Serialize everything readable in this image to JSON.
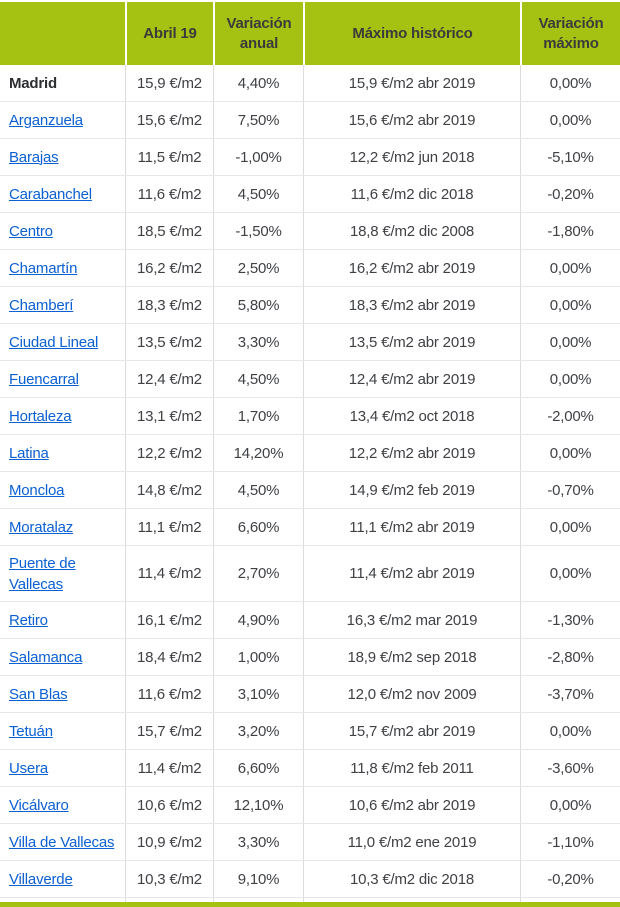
{
  "colors": {
    "header_green": "#a5c212",
    "link_blue": "#0b60d2",
    "body_text": "#3f4145"
  },
  "table": {
    "columns": [
      {
        "label": ""
      },
      {
        "label": "Abril 19"
      },
      {
        "label": "Variación anual"
      },
      {
        "label": "Máximo histórico"
      },
      {
        "label": "Variación máximo"
      }
    ],
    "rows": [
      {
        "name": "Madrid",
        "link": false,
        "abril19": "15,9 €/m2",
        "var_anual": "4,40%",
        "maximo": "15,9 €/m2 abr 2019",
        "var_maximo": "0,00%"
      },
      {
        "name": "Arganzuela",
        "link": true,
        "abril19": "15,6 €/m2",
        "var_anual": "7,50%",
        "maximo": "15,6 €/m2 abr 2019",
        "var_maximo": "0,00%"
      },
      {
        "name": "Barajas",
        "link": true,
        "abril19": "11,5 €/m2",
        "var_anual": "-1,00%",
        "maximo": "12,2 €/m2 jun 2018",
        "var_maximo": "-5,10%"
      },
      {
        "name": "Carabanchel",
        "link": true,
        "abril19": "11,6 €/m2",
        "var_anual": "4,50%",
        "maximo": "11,6 €/m2 dic 2018",
        "var_maximo": "-0,20%"
      },
      {
        "name": "Centro",
        "link": true,
        "abril19": "18,5 €/m2",
        "var_anual": "-1,50%",
        "maximo": "18,8 €/m2 dic 2008",
        "var_maximo": "-1,80%"
      },
      {
        "name": "Chamartín",
        "link": true,
        "abril19": "16,2 €/m2",
        "var_anual": "2,50%",
        "maximo": "16,2 €/m2 abr 2019",
        "var_maximo": "0,00%"
      },
      {
        "name": "Chamberí",
        "link": true,
        "abril19": "18,3 €/m2",
        "var_anual": "5,80%",
        "maximo": "18,3 €/m2 abr 2019",
        "var_maximo": "0,00%"
      },
      {
        "name": "Ciudad Lineal",
        "link": true,
        "abril19": "13,5 €/m2",
        "var_anual": "3,30%",
        "maximo": "13,5 €/m2 abr 2019",
        "var_maximo": "0,00%"
      },
      {
        "name": "Fuencarral",
        "link": true,
        "abril19": "12,4 €/m2",
        "var_anual": "4,50%",
        "maximo": "12,4 €/m2 abr 2019",
        "var_maximo": "0,00%"
      },
      {
        "name": "Hortaleza",
        "link": true,
        "abril19": "13,1 €/m2",
        "var_anual": "1,70%",
        "maximo": "13,4 €/m2 oct 2018",
        "var_maximo": "-2,00%"
      },
      {
        "name": "Latina",
        "link": true,
        "abril19": "12,2 €/m2",
        "var_anual": "14,20%",
        "maximo": "12,2 €/m2 abr 2019",
        "var_maximo": "0,00%"
      },
      {
        "name": "Moncloa",
        "link": true,
        "abril19": "14,8 €/m2",
        "var_anual": "4,50%",
        "maximo": "14,9 €/m2 feb 2019",
        "var_maximo": "-0,70%"
      },
      {
        "name": "Moratalaz",
        "link": true,
        "abril19": "11,1 €/m2",
        "var_anual": "6,60%",
        "maximo": "11,1 €/m2 abr 2019",
        "var_maximo": "0,00%"
      },
      {
        "name": "Puente de Vallecas",
        "link": true,
        "tall": true,
        "abril19": "11,4 €/m2",
        "var_anual": "2,70%",
        "maximo": "11,4 €/m2 abr 2019",
        "var_maximo": "0,00%"
      },
      {
        "name": "Retiro",
        "link": true,
        "abril19": "16,1 €/m2",
        "var_anual": "4,90%",
        "maximo": "16,3 €/m2 mar 2019",
        "var_maximo": "-1,30%"
      },
      {
        "name": "Salamanca",
        "link": true,
        "abril19": "18,4 €/m2",
        "var_anual": "1,00%",
        "maximo": "18,9 €/m2 sep 2018",
        "var_maximo": "-2,80%"
      },
      {
        "name": "San Blas",
        "link": true,
        "abril19": "11,6 €/m2",
        "var_anual": "3,10%",
        "maximo": "12,0 €/m2 nov 2009",
        "var_maximo": "-3,70%"
      },
      {
        "name": "Tetuán",
        "link": true,
        "abril19": "15,7 €/m2",
        "var_anual": "3,20%",
        "maximo": "15,7 €/m2 abr 2019",
        "var_maximo": "0,00%"
      },
      {
        "name": "Usera",
        "link": true,
        "abril19": "11,4 €/m2",
        "var_anual": "6,60%",
        "maximo": "11,8 €/m2 feb 2011",
        "var_maximo": "-3,60%"
      },
      {
        "name": "Vicálvaro",
        "link": true,
        "abril19": "10,6 €/m2",
        "var_anual": "12,10%",
        "maximo": "10,6 €/m2 abr 2019",
        "var_maximo": "0,00%"
      },
      {
        "name": "Villa de Vallecas",
        "link": true,
        "abril19": "10,9 €/m2",
        "var_anual": "3,30%",
        "maximo": "11,0 €/m2 ene 2019",
        "var_maximo": "-1,10%"
      },
      {
        "name": "Villaverde",
        "link": true,
        "abril19": "10,3 €/m2",
        "var_anual": "9,10%",
        "maximo": "10,3 €/m2 dic 2018",
        "var_maximo": "-0,20%"
      }
    ]
  }
}
